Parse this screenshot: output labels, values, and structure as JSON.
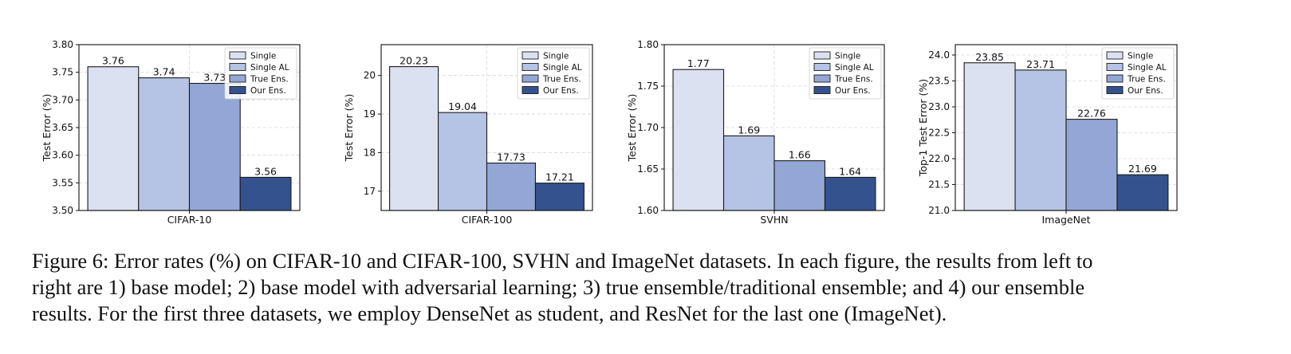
{
  "chart_data": [
    {
      "type": "bar",
      "xlabel": "CIFAR-10",
      "ylabel": "Test Error (%)",
      "ylim": [
        3.5,
        3.8
      ],
      "yticks": [
        "3.50",
        "3.55",
        "3.60",
        "3.65",
        "3.70",
        "3.75",
        "3.80"
      ],
      "grid": true,
      "legend_position": "top-right",
      "series": [
        {
          "name": "Single",
          "value": 3.76,
          "label": "3.76"
        },
        {
          "name": "Single AL",
          "value": 3.74,
          "label": "3.74"
        },
        {
          "name": "True Ens.",
          "value": 3.73,
          "label": "3.73"
        },
        {
          "name": "Our Ens.",
          "value": 3.56,
          "label": "3.56"
        }
      ]
    },
    {
      "type": "bar",
      "xlabel": "CIFAR-100",
      "ylabel": "Test Error (%)",
      "ylim": [
        16.5,
        20.8
      ],
      "yticks": [
        "17",
        "18",
        "19",
        "20"
      ],
      "grid": true,
      "legend_position": "top-right",
      "series": [
        {
          "name": "Single",
          "value": 20.23,
          "label": "20.23"
        },
        {
          "name": "Single AL",
          "value": 19.04,
          "label": "19.04"
        },
        {
          "name": "True Ens.",
          "value": 17.73,
          "label": "17.73"
        },
        {
          "name": "Our Ens.",
          "value": 17.21,
          "label": "17.21"
        }
      ]
    },
    {
      "type": "bar",
      "xlabel": "SVHN",
      "ylabel": "Test Error (%)",
      "ylim": [
        1.6,
        1.8
      ],
      "yticks": [
        "1.60",
        "1.65",
        "1.70",
        "1.75",
        "1.80"
      ],
      "grid": true,
      "legend_position": "top-right",
      "series": [
        {
          "name": "Single",
          "value": 1.77,
          "label": "1.77"
        },
        {
          "name": "Single AL",
          "value": 1.69,
          "label": "1.69"
        },
        {
          "name": "True Ens.",
          "value": 1.66,
          "label": "1.66"
        },
        {
          "name": "Our Ens.",
          "value": 1.64,
          "label": "1.64"
        }
      ]
    },
    {
      "type": "bar",
      "xlabel": "ImageNet",
      "ylabel": "Top-1 Test Error (%)",
      "ylim": [
        21.0,
        24.2
      ],
      "yticks": [
        "21.0",
        "21.5",
        "22.0",
        "22.5",
        "23.0",
        "23.5",
        "24.0"
      ],
      "grid": true,
      "legend_position": "top-right",
      "series": [
        {
          "name": "Single",
          "value": 23.85,
          "label": "23.85"
        },
        {
          "name": "Single AL",
          "value": 23.71,
          "label": "23.71"
        },
        {
          "name": "True Ens.",
          "value": 22.76,
          "label": "22.76"
        },
        {
          "name": "Our Ens.",
          "value": 21.69,
          "label": "21.69"
        }
      ]
    }
  ],
  "colors": {
    "Single": "#dce1f1",
    "Single AL": "#b5c3e4",
    "True Ens.": "#92a7d6",
    "Our Ens.": "#34538e",
    "grid": "#d6d6d6",
    "axis": "#111111"
  },
  "caption": {
    "line1": "Figure 6: Error rates (%) on CIFAR-10 and CIFAR-100, SVHN and ImageNet datasets. In each figure, the results from left to",
    "line2": "right are 1) base model; 2) base model with adversarial learning; 3) true ensemble/traditional ensemble; and 4) our ensemble",
    "line3": "results. For the first three datasets, we employ DenseNet as student, and ResNet for the last one (ImageNet)."
  }
}
